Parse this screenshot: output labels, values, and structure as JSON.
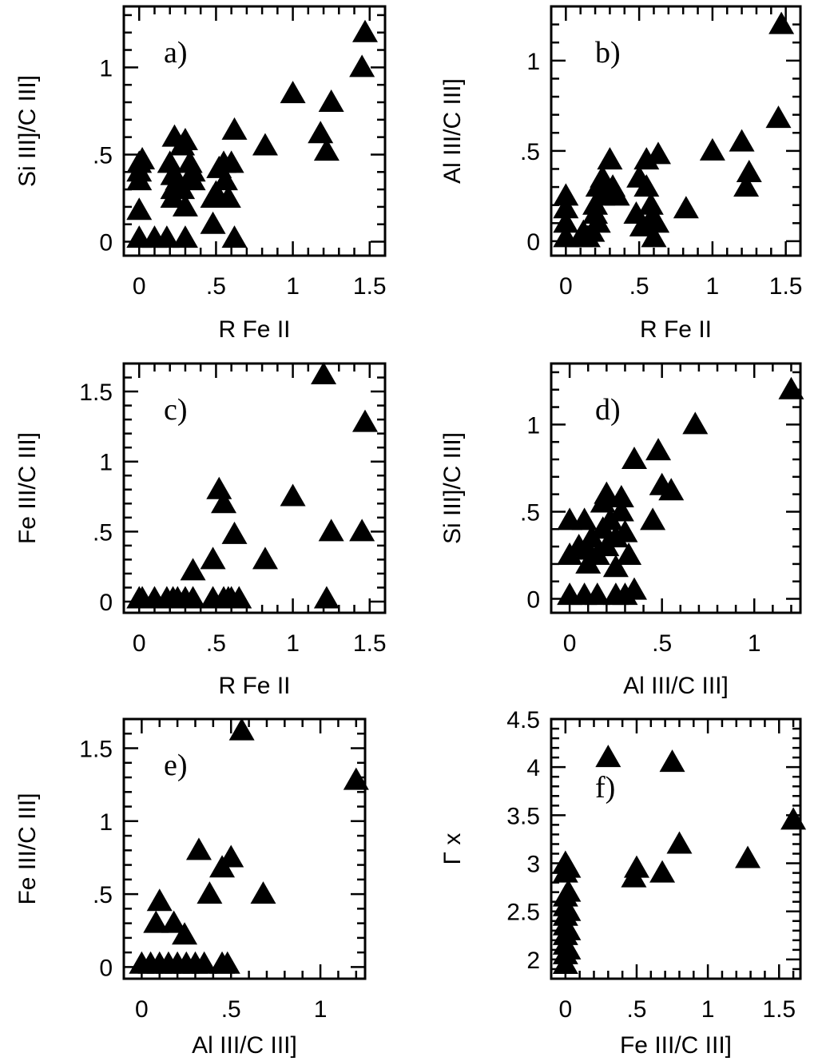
{
  "chart_data": [
    {
      "type": "scatter",
      "panel_label": "a)",
      "xlabel": "R Fe II",
      "ylabel": "Si III]/C III]",
      "xlim": [
        -0.1,
        1.6
      ],
      "ylim": [
        -0.08,
        1.35
      ],
      "xticks": [
        {
          "v": 0,
          "t": "0"
        },
        {
          "v": 0.5,
          "t": ".5"
        },
        {
          "v": 1,
          "t": "1"
        },
        {
          "v": 1.5,
          "t": "1.5"
        }
      ],
      "yticks": [
        {
          "v": 0,
          "t": "0"
        },
        {
          "v": 0.5,
          "t": ".5"
        },
        {
          "v": 1,
          "t": "1"
        }
      ],
      "marker": "filled-triangle",
      "points": [
        [
          0.0,
          0.02
        ],
        [
          0.0,
          0.18
        ],
        [
          0.0,
          0.35
        ],
        [
          0.0,
          0.4
        ],
        [
          0.0,
          0.45
        ],
        [
          0.02,
          0.47
        ],
        [
          0.1,
          0.02
        ],
        [
          0.18,
          0.02
        ],
        [
          0.2,
          0.45
        ],
        [
          0.22,
          0.25
        ],
        [
          0.22,
          0.3
        ],
        [
          0.22,
          0.38
        ],
        [
          0.23,
          0.6
        ],
        [
          0.25,
          0.35
        ],
        [
          0.28,
          0.3
        ],
        [
          0.28,
          0.55
        ],
        [
          0.3,
          0.2
        ],
        [
          0.3,
          0.58
        ],
        [
          0.3,
          0.02
        ],
        [
          0.33,
          0.45
        ],
        [
          0.35,
          0.4
        ],
        [
          0.35,
          0.35
        ],
        [
          0.48,
          0.1
        ],
        [
          0.48,
          0.25
        ],
        [
          0.5,
          0.28
        ],
        [
          0.52,
          0.42
        ],
        [
          0.55,
          0.45
        ],
        [
          0.56,
          0.35
        ],
        [
          0.58,
          0.25
        ],
        [
          0.6,
          0.45
        ],
        [
          0.62,
          0.02
        ],
        [
          0.62,
          0.64
        ],
        [
          0.82,
          0.55
        ],
        [
          1.0,
          0.85
        ],
        [
          1.18,
          0.62
        ],
        [
          1.22,
          0.52
        ],
        [
          1.25,
          0.8
        ],
        [
          1.45,
          1.0
        ],
        [
          1.47,
          1.2
        ]
      ]
    },
    {
      "type": "scatter",
      "panel_label": "b)",
      "xlabel": "R Fe II",
      "ylabel": "Al III/C III]",
      "xlim": [
        -0.1,
        1.6
      ],
      "ylim": [
        -0.08,
        1.3
      ],
      "xticks": [
        {
          "v": 0,
          "t": "0"
        },
        {
          "v": 0.5,
          "t": ".5"
        },
        {
          "v": 1,
          "t": "1"
        },
        {
          "v": 1.5,
          "t": "1.5"
        }
      ],
      "yticks": [
        {
          "v": 0,
          "t": "0"
        },
        {
          "v": 0.5,
          "t": ".5"
        },
        {
          "v": 1,
          "t": "1"
        }
      ],
      "marker": "filled-triangle",
      "points": [
        [
          0.0,
          0.02
        ],
        [
          0.0,
          0.1
        ],
        [
          0.0,
          0.18
        ],
        [
          0.0,
          0.25
        ],
        [
          0.1,
          0.02
        ],
        [
          0.12,
          0.05
        ],
        [
          0.15,
          0.02
        ],
        [
          0.18,
          0.05
        ],
        [
          0.2,
          0.15
        ],
        [
          0.2,
          0.2
        ],
        [
          0.22,
          0.3
        ],
        [
          0.22,
          0.1
        ],
        [
          0.25,
          0.25
        ],
        [
          0.25,
          0.35
        ],
        [
          0.28,
          0.28
        ],
        [
          0.3,
          0.45
        ],
        [
          0.32,
          0.3
        ],
        [
          0.35,
          0.25
        ],
        [
          0.48,
          0.15
        ],
        [
          0.5,
          0.35
        ],
        [
          0.52,
          0.08
        ],
        [
          0.55,
          0.3
        ],
        [
          0.55,
          0.45
        ],
        [
          0.58,
          0.2
        ],
        [
          0.58,
          0.12
        ],
        [
          0.6,
          0.02
        ],
        [
          0.62,
          0.1
        ],
        [
          0.63,
          0.48
        ],
        [
          0.82,
          0.18
        ],
        [
          1.0,
          0.5
        ],
        [
          1.2,
          0.55
        ],
        [
          1.23,
          0.3
        ],
        [
          1.25,
          0.38
        ],
        [
          1.45,
          0.68
        ],
        [
          1.47,
          1.2
        ]
      ]
    },
    {
      "type": "scatter",
      "panel_label": "c)",
      "xlabel": "R Fe II",
      "ylabel": "Fe III/C III]",
      "xlim": [
        -0.1,
        1.6
      ],
      "ylim": [
        -0.08,
        1.7
      ],
      "xticks": [
        {
          "v": 0,
          "t": "0"
        },
        {
          "v": 0.5,
          "t": ".5"
        },
        {
          "v": 1,
          "t": "1"
        },
        {
          "v": 1.5,
          "t": "1.5"
        }
      ],
      "yticks": [
        {
          "v": 0,
          "t": "0"
        },
        {
          "v": 0.5,
          "t": ".5"
        },
        {
          "v": 1,
          "t": "1"
        },
        {
          "v": 1.5,
          "t": "1.5"
        }
      ],
      "marker": "filled-triangle",
      "points": [
        [
          0.0,
          0.02
        ],
        [
          0.02,
          0.02
        ],
        [
          0.1,
          0.02
        ],
        [
          0.18,
          0.02
        ],
        [
          0.22,
          0.02
        ],
        [
          0.25,
          0.02
        ],
        [
          0.3,
          0.02
        ],
        [
          0.35,
          0.02
        ],
        [
          0.35,
          0.22
        ],
        [
          0.48,
          0.02
        ],
        [
          0.48,
          0.3
        ],
        [
          0.52,
          0.8
        ],
        [
          0.55,
          0.02
        ],
        [
          0.55,
          0.7
        ],
        [
          0.58,
          0.02
        ],
        [
          0.6,
          0.02
        ],
        [
          0.62,
          0.48
        ],
        [
          0.65,
          0.02
        ],
        [
          0.82,
          0.3
        ],
        [
          1.0,
          0.75
        ],
        [
          1.2,
          1.62
        ],
        [
          1.22,
          0.02
        ],
        [
          1.25,
          0.5
        ],
        [
          1.45,
          0.5
        ],
        [
          1.47,
          1.28
        ]
      ]
    },
    {
      "type": "scatter",
      "panel_label": "d)",
      "xlabel": "Al III/C III]",
      "ylabel": "Si III]/C III]",
      "xlim": [
        -0.1,
        1.25
      ],
      "ylim": [
        -0.08,
        1.35
      ],
      "xticks": [
        {
          "v": 0,
          "t": "0"
        },
        {
          "v": 0.5,
          "t": ".5"
        },
        {
          "v": 1,
          "t": "1"
        }
      ],
      "yticks": [
        {
          "v": 0,
          "t": "0"
        },
        {
          "v": 0.5,
          "t": ".5"
        },
        {
          "v": 1,
          "t": "1"
        }
      ],
      "marker": "filled-triangle",
      "points": [
        [
          0.0,
          0.02
        ],
        [
          0.0,
          0.25
        ],
        [
          0.0,
          0.45
        ],
        [
          0.05,
          0.3
        ],
        [
          0.08,
          0.02
        ],
        [
          0.08,
          0.45
        ],
        [
          0.1,
          0.2
        ],
        [
          0.1,
          0.28
        ],
        [
          0.12,
          0.35
        ],
        [
          0.15,
          0.02
        ],
        [
          0.15,
          0.25
        ],
        [
          0.18,
          0.4
        ],
        [
          0.18,
          0.55
        ],
        [
          0.2,
          0.3
        ],
        [
          0.2,
          0.6
        ],
        [
          0.22,
          0.45
        ],
        [
          0.25,
          0.02
        ],
        [
          0.25,
          0.35
        ],
        [
          0.25,
          0.18
        ],
        [
          0.28,
          0.5
        ],
        [
          0.28,
          0.58
        ],
        [
          0.3,
          0.02
        ],
        [
          0.3,
          0.38
        ],
        [
          0.32,
          0.25
        ],
        [
          0.35,
          0.05
        ],
        [
          0.35,
          0.8
        ],
        [
          0.45,
          0.45
        ],
        [
          0.48,
          0.85
        ],
        [
          0.5,
          0.65
        ],
        [
          0.55,
          0.62
        ],
        [
          0.68,
          1.0
        ],
        [
          1.2,
          1.2
        ]
      ]
    },
    {
      "type": "scatter",
      "panel_label": "e)",
      "xlabel": "Al III/C III]",
      "ylabel": "Fe III/C III]",
      "xlim": [
        -0.1,
        1.25
      ],
      "ylim": [
        -0.08,
        1.7
      ],
      "xticks": [
        {
          "v": 0,
          "t": "0"
        },
        {
          "v": 0.5,
          "t": ".5"
        },
        {
          "v": 1,
          "t": "1"
        }
      ],
      "yticks": [
        {
          "v": 0,
          "t": "0"
        },
        {
          "v": 0.5,
          "t": ".5"
        },
        {
          "v": 1,
          "t": "1"
        },
        {
          "v": 1.5,
          "t": "1.5"
        }
      ],
      "marker": "filled-triangle",
      "points": [
        [
          0.0,
          0.02
        ],
        [
          0.05,
          0.02
        ],
        [
          0.08,
          0.3
        ],
        [
          0.1,
          0.45
        ],
        [
          0.1,
          0.02
        ],
        [
          0.15,
          0.02
        ],
        [
          0.18,
          0.3
        ],
        [
          0.2,
          0.02
        ],
        [
          0.24,
          0.22
        ],
        [
          0.25,
          0.02
        ],
        [
          0.3,
          0.02
        ],
        [
          0.32,
          0.8
        ],
        [
          0.35,
          0.02
        ],
        [
          0.38,
          0.5
        ],
        [
          0.45,
          0.02
        ],
        [
          0.45,
          0.68
        ],
        [
          0.48,
          0.02
        ],
        [
          0.5,
          0.75
        ],
        [
          0.56,
          1.62
        ],
        [
          0.68,
          0.5
        ],
        [
          1.2,
          1.28
        ]
      ]
    },
    {
      "type": "scatter",
      "panel_label": "f)",
      "xlabel": "Fe III/C III]",
      "ylabel": "Γ x",
      "xlim": [
        -0.1,
        1.65
      ],
      "ylim": [
        1.8,
        4.5
      ],
      "xticks": [
        {
          "v": 0,
          "t": "0"
        },
        {
          "v": 0.5,
          "t": ".5"
        },
        {
          "v": 1,
          "t": "1"
        },
        {
          "v": 1.5,
          "t": "1.5"
        }
      ],
      "yticks": [
        {
          "v": 2,
          "t": "2"
        },
        {
          "v": 2.5,
          "t": "2.5"
        },
        {
          "v": 3,
          "t": "3"
        },
        {
          "v": 3.5,
          "t": "3.5"
        },
        {
          "v": 4,
          "t": "4"
        },
        {
          "v": 4.5,
          "t": "4.5"
        }
      ],
      "marker": "filled-triangle",
      "points": [
        [
          0.0,
          1.95
        ],
        [
          0.0,
          2.05
        ],
        [
          0.0,
          2.15
        ],
        [
          0.0,
          2.25
        ],
        [
          0.0,
          2.35
        ],
        [
          0.0,
          2.45
        ],
        [
          0.0,
          2.55
        ],
        [
          0.0,
          2.65
        ],
        [
          0.0,
          2.9
        ],
        [
          0.0,
          3.0
        ],
        [
          0.02,
          2.1
        ],
        [
          0.02,
          2.3
        ],
        [
          0.02,
          2.5
        ],
        [
          0.02,
          2.7
        ],
        [
          0.02,
          2.95
        ],
        [
          0.3,
          4.1
        ],
        [
          0.48,
          2.85
        ],
        [
          0.5,
          2.95
        ],
        [
          0.68,
          2.9
        ],
        [
          0.75,
          4.05
        ],
        [
          0.8,
          3.2
        ],
        [
          1.28,
          3.05
        ],
        [
          1.6,
          3.45
        ]
      ]
    }
  ]
}
